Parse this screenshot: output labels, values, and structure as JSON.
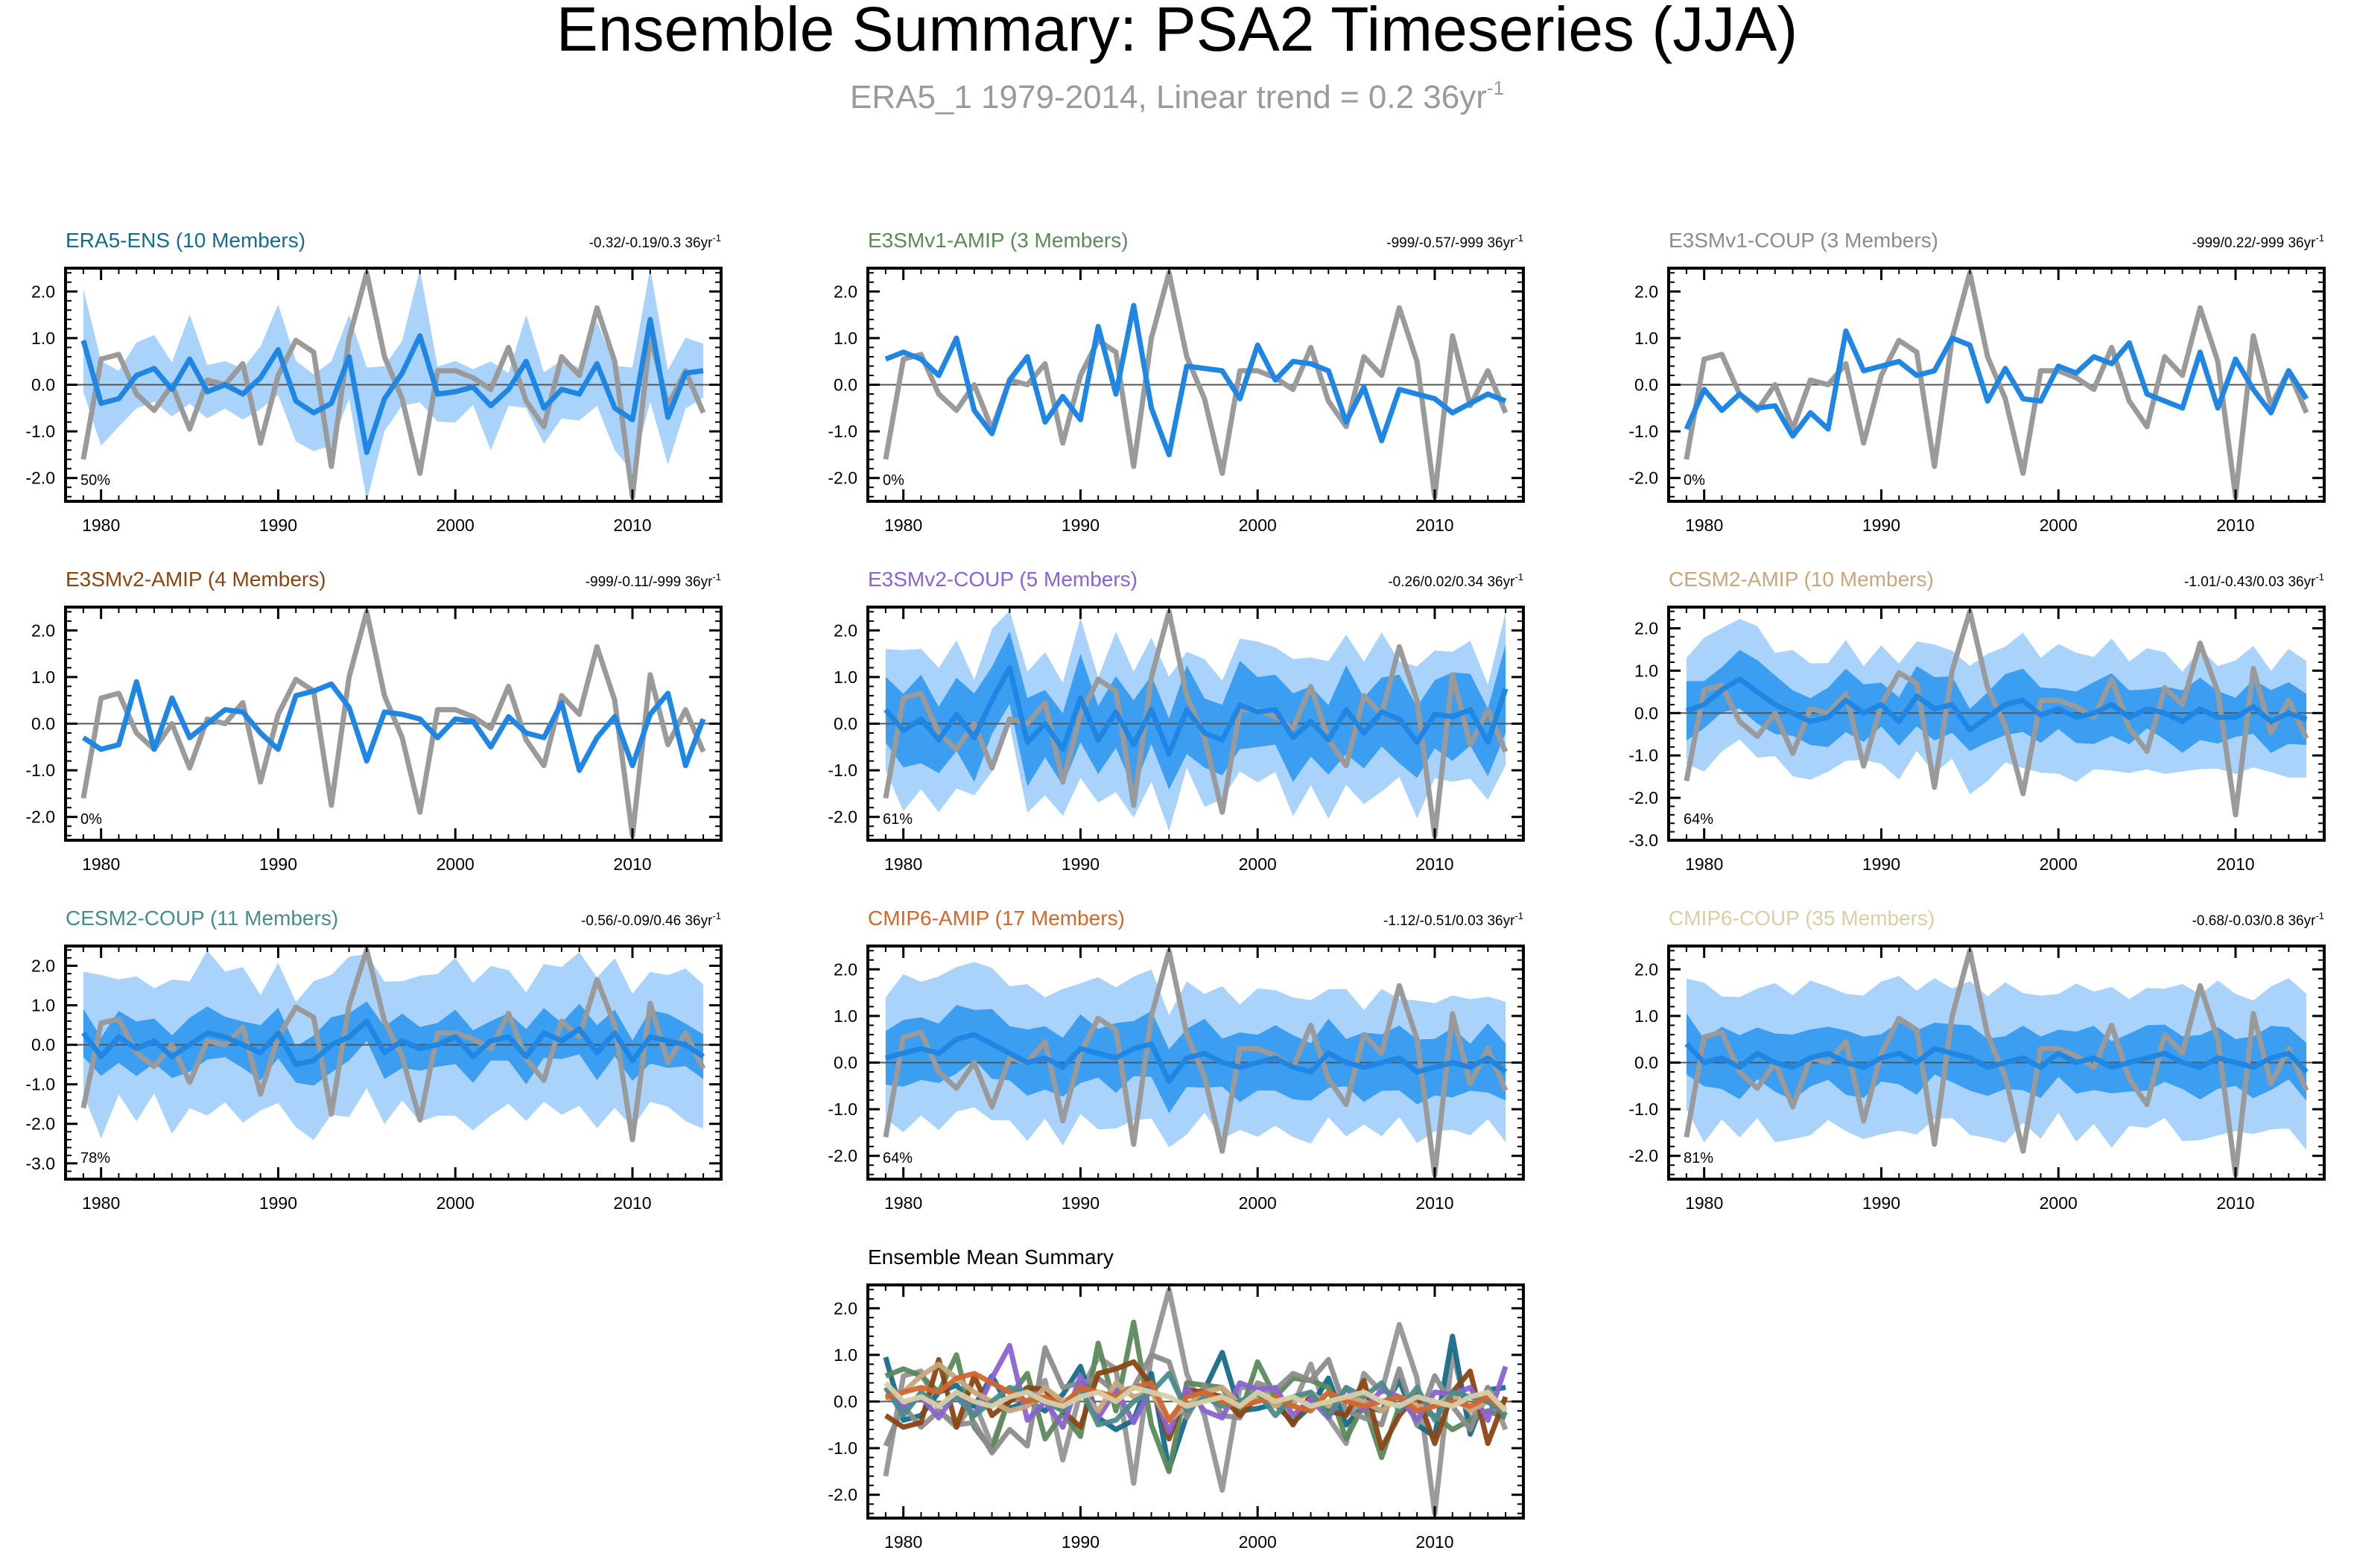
{
  "title": "Ensemble Summary: PSA2 Timeseries (JJA)",
  "subtitle": {
    "main": "ERA5_1 1979-2014, Linear trend = 0.2 36yr",
    "sup": "-1"
  },
  "colors": {
    "obs": "#9a9a9a",
    "mean": "#1f87e3",
    "spread_outer": "#a9d3fb",
    "spread_inner": "#3b9ef0",
    "zero_line": "#555555"
  },
  "chart_data": {
    "type": "line",
    "years": [
      1979,
      1980,
      1981,
      1982,
      1983,
      1984,
      1985,
      1986,
      1987,
      1988,
      1989,
      1990,
      1991,
      1992,
      1993,
      1994,
      1995,
      1996,
      1997,
      1998,
      1999,
      2000,
      2001,
      2002,
      2003,
      2004,
      2005,
      2006,
      2007,
      2008,
      2009,
      2010,
      2011,
      2012,
      2013,
      2014
    ],
    "xticks": [
      1980,
      1990,
      2000,
      2010
    ],
    "observation": {
      "name": "ERA5_1",
      "values": [
        -1.6,
        0.55,
        0.65,
        -0.2,
        -0.55,
        0.0,
        -0.95,
        0.1,
        0.0,
        0.45,
        -1.25,
        0.2,
        0.95,
        0.7,
        -1.75,
        1.0,
        2.4,
        0.6,
        -0.3,
        -1.9,
        0.3,
        0.3,
        0.15,
        -0.1,
        0.8,
        -0.35,
        -0.9,
        0.6,
        0.2,
        1.65,
        0.5,
        -2.4,
        1.05,
        -0.45,
        0.3,
        -0.6
      ]
    },
    "panels": [
      {
        "label": "ERA5-ENS (10 Members)",
        "label_color": "#156b8a",
        "stats": "-0.32/-0.19/0.3 36yr",
        "stats_sup": "-1",
        "pct": "50%",
        "ylim": [
          -2.5,
          2.5
        ],
        "yticks": [
          "2.0",
          "1.0",
          "0.0",
          "-1.0",
          "-2.0"
        ],
        "band": "era5",
        "mean": [
          0.95,
          -0.4,
          -0.3,
          0.2,
          0.35,
          -0.1,
          0.55,
          -0.15,
          0.0,
          -0.2,
          0.15,
          0.75,
          -0.35,
          -0.6,
          -0.4,
          0.6,
          -1.45,
          -0.3,
          0.25,
          1.05,
          -0.2,
          -0.15,
          -0.05,
          -0.45,
          -0.1,
          0.5,
          -0.5,
          -0.1,
          -0.2,
          0.45,
          -0.5,
          -0.75,
          1.4,
          -0.7,
          0.25,
          0.3
        ]
      },
      {
        "label": "E3SMv1-AMIP (3 Members)",
        "label_color": "#5a8a5a",
        "stats": "-999/-0.57/-999 36yr",
        "stats_sup": "-1",
        "pct": "0%",
        "ylim": [
          -2.5,
          2.5
        ],
        "yticks": [
          "2.0",
          "1.0",
          "0.0",
          "-1.0",
          "-2.0"
        ],
        "band": "none",
        "mean": [
          0.55,
          0.7,
          0.55,
          0.2,
          1.0,
          -0.55,
          -1.05,
          0.1,
          0.6,
          -0.8,
          -0.25,
          -0.75,
          1.25,
          -0.2,
          1.7,
          -0.5,
          -1.5,
          0.4,
          0.35,
          0.3,
          -0.3,
          0.85,
          0.1,
          0.5,
          0.45,
          0.3,
          -0.8,
          -0.05,
          -1.2,
          -0.1,
          -0.2,
          -0.3,
          -0.6,
          -0.4,
          -0.2,
          -0.35
        ]
      },
      {
        "label": "E3SMv1-COUP (3 Members)",
        "label_color": "#8c8c8c",
        "stats": "-999/0.22/-999 36yr",
        "stats_sup": "-1",
        "pct": "0%",
        "ylim": [
          -2.5,
          2.5
        ],
        "yticks": [
          "2.0",
          "1.0",
          "0.0",
          "-1.0",
          "-2.0"
        ],
        "band": "none",
        "mean": [
          -0.95,
          -0.1,
          -0.55,
          -0.2,
          -0.5,
          -0.45,
          -1.1,
          -0.6,
          -0.95,
          1.15,
          0.3,
          0.4,
          0.5,
          0.2,
          0.3,
          1.0,
          0.85,
          -0.35,
          0.35,
          -0.3,
          -0.35,
          0.4,
          0.25,
          0.6,
          0.45,
          0.9,
          -0.2,
          -0.35,
          -0.5,
          0.7,
          -0.5,
          0.55,
          -0.1,
          -0.6,
          0.3,
          -0.3
        ]
      },
      {
        "label": "E3SMv2-AMIP (4 Members)",
        "label_color": "#8b4513",
        "stats": "-999/-0.11/-999 36yr",
        "stats_sup": "-1",
        "pct": "0%",
        "ylim": [
          -2.5,
          2.5
        ],
        "yticks": [
          "2.0",
          "1.0",
          "0.0",
          "-1.0",
          "-2.0"
        ],
        "band": "none",
        "mean": [
          -0.3,
          -0.55,
          -0.45,
          0.9,
          -0.55,
          0.55,
          -0.3,
          0.0,
          0.3,
          0.25,
          -0.2,
          -0.55,
          0.6,
          0.7,
          0.85,
          0.35,
          -0.8,
          0.25,
          0.2,
          0.1,
          -0.3,
          0.1,
          0.05,
          -0.5,
          0.15,
          -0.2,
          -0.3,
          0.45,
          -1.0,
          -0.3,
          0.15,
          -0.9,
          0.2,
          0.65,
          -0.9,
          0.1
        ]
      },
      {
        "label": "E3SMv2-COUP (5 Members)",
        "label_color": "#8a63d2",
        "stats": "-0.26/0.02/0.34 36yr",
        "stats_sup": "-1",
        "pct": "61%",
        "ylim": [
          -2.5,
          2.5
        ],
        "yticks": [
          "2.0",
          "1.0",
          "0.0",
          "-1.0",
          "-2.0"
        ],
        "band": "w5",
        "mean": [
          0.3,
          -0.15,
          0.1,
          -0.35,
          0.2,
          -0.3,
          0.5,
          1.2,
          -0.4,
          0.0,
          -0.55,
          0.55,
          -0.35,
          0.25,
          -0.45,
          0.3,
          -0.65,
          0.3,
          -0.2,
          -0.35,
          0.4,
          0.25,
          0.3,
          -0.3,
          0.05,
          -0.35,
          0.3,
          -0.2,
          0.25,
          0.1,
          -0.4,
          0.2,
          0.15,
          0.3,
          -0.4,
          0.75
        ]
      },
      {
        "label": "CESM2-AMIP (10 Members)",
        "label_color": "#c8a67e",
        "stats": "-1.01/-0.43/0.03 36yr",
        "stats_sup": "-1",
        "pct": "64%",
        "ylim": [
          -3.0,
          2.5
        ],
        "yticks": [
          "2.0",
          "1.0",
          "0.0",
          "-1.0",
          "-2.0",
          "-3.0"
        ],
        "band": "w10",
        "mean": [
          0.05,
          0.2,
          0.55,
          0.8,
          0.5,
          0.2,
          0.0,
          -0.2,
          -0.1,
          0.3,
          0.0,
          0.2,
          -0.2,
          0.4,
          0.1,
          0.2,
          -0.4,
          -0.1,
          0.2,
          0.3,
          -0.05,
          0.1,
          -0.1,
          0.0,
          0.2,
          -0.1,
          0.1,
          0.0,
          -0.2,
          0.1,
          -0.1,
          -0.1,
          0.15,
          -0.2,
          0.0,
          -0.15
        ]
      },
      {
        "label": "CESM2-COUP (11 Members)",
        "label_color": "#4b8b8b",
        "stats": "-0.56/-0.09/0.46 36yr",
        "stats_sup": "-1",
        "pct": "78%",
        "ylim": [
          -3.4,
          2.5
        ],
        "yticks": [
          "2.0",
          "1.0",
          "0.0",
          "-1.0",
          "-2.0",
          "-3.0"
        ],
        "band": "w11",
        "mean": [
          0.3,
          -0.3,
          0.2,
          -0.1,
          0.1,
          -0.3,
          0.0,
          0.3,
          0.2,
          0.0,
          -0.2,
          0.3,
          -0.5,
          -0.4,
          0.0,
          0.2,
          0.6,
          -0.2,
          0.1,
          -0.1,
          0.0,
          0.2,
          -0.3,
          0.1,
          0.2,
          -0.3,
          0.3,
          0.1,
          0.4,
          -0.2,
          0.3,
          -0.4,
          0.2,
          0.1,
          0.0,
          -0.3
        ]
      },
      {
        "label": "CMIP6-AMIP (17 Members)",
        "label_color": "#d2672d",
        "stats": "-1.12/-0.51/0.03 36yr",
        "stats_sup": "-1",
        "pct": "64%",
        "ylim": [
          -2.5,
          2.5
        ],
        "yticks": [
          "2.0",
          "1.0",
          "0.0",
          "-1.0",
          "-2.0"
        ],
        "band": "w17",
        "mean": [
          0.1,
          0.2,
          0.3,
          0.2,
          0.5,
          0.6,
          0.4,
          0.2,
          0.0,
          0.1,
          -0.1,
          0.3,
          0.2,
          0.1,
          0.3,
          0.4,
          -0.4,
          0.1,
          0.2,
          0.0,
          -0.1,
          0.0,
          0.1,
          -0.1,
          -0.2,
          0.2,
          0.0,
          -0.1,
          0.0,
          0.1,
          -0.2,
          -0.1,
          0.0,
          -0.1,
          0.1,
          -0.2
        ]
      },
      {
        "label": "CMIP6-COUP (35 Members)",
        "label_color": "#d6cfa8",
        "stats": "-0.68/-0.03/0.8 36yr",
        "stats_sup": "-1",
        "pct": "81%",
        "ylim": [
          -2.5,
          2.5
        ],
        "yticks": [
          "2.0",
          "1.0",
          "0.0",
          "-1.0",
          "-2.0"
        ],
        "band": "w35",
        "mean": [
          0.4,
          0.0,
          0.1,
          -0.1,
          0.2,
          0.0,
          -0.1,
          0.1,
          0.2,
          0.0,
          -0.1,
          0.1,
          0.2,
          0.0,
          0.3,
          0.2,
          0.1,
          -0.1,
          0.0,
          0.1,
          -0.1,
          0.2,
          0.0,
          0.1,
          -0.1,
          0.0,
          0.1,
          0.2,
          0.0,
          -0.1,
          0.1,
          0.0,
          -0.1,
          0.1,
          0.2,
          -0.2
        ]
      }
    ],
    "summary": {
      "label": "Ensemble Mean Summary",
      "ylim": [
        -2.5,
        2.5
      ],
      "yticks": [
        "2.0",
        "1.0",
        "0.0",
        "-1.0",
        "-2.0"
      ]
    }
  }
}
